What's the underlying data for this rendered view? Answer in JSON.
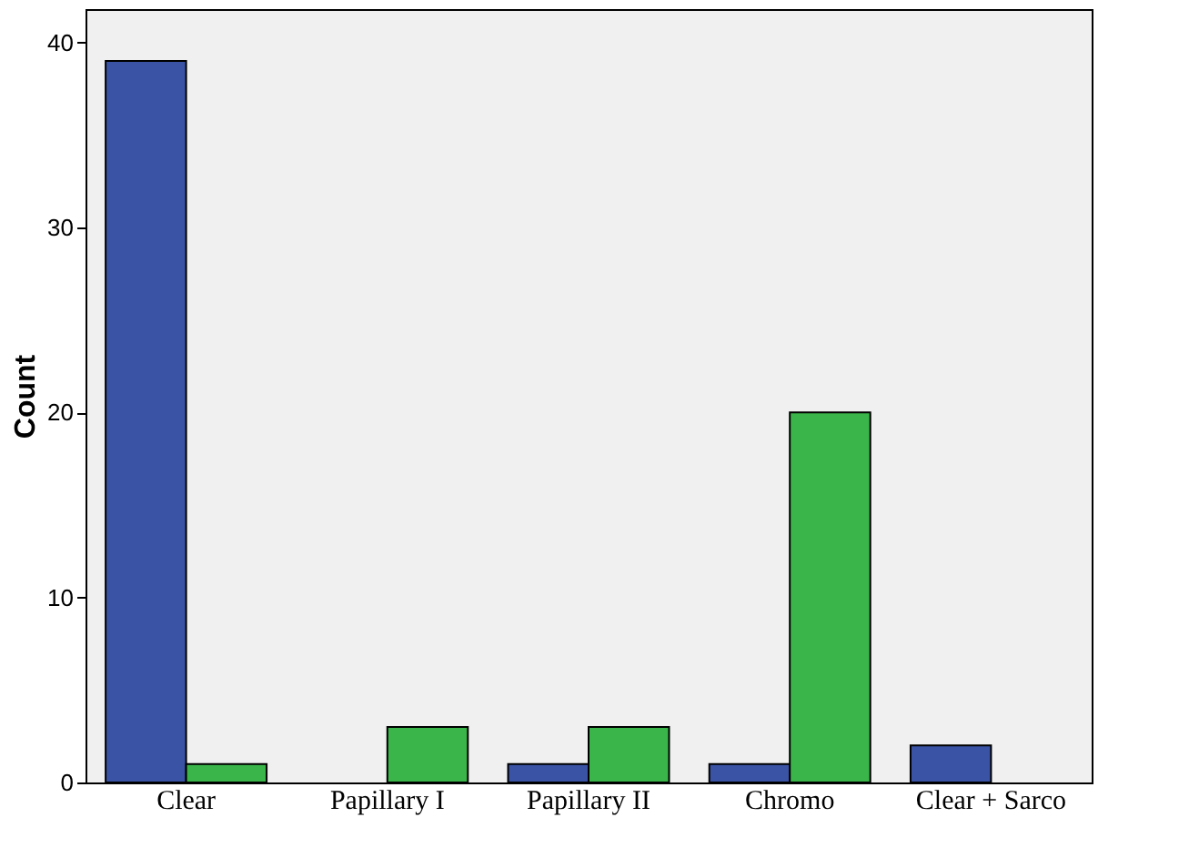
{
  "chart_data": {
    "type": "bar",
    "ylabel": "Count",
    "categories": [
      "Clear",
      "Papillary I",
      "Papillary II",
      "Chromo",
      "Clear + Sarco"
    ],
    "series": [
      {
        "color": "#3a53a4",
        "values": [
          39,
          0,
          1,
          1,
          2
        ]
      },
      {
        "color": "#3ab54a",
        "values": [
          1,
          3,
          3,
          20,
          0
        ]
      }
    ],
    "ylim": [
      0,
      41.8
    ],
    "yticks": [
      0,
      10,
      20,
      30,
      40
    ],
    "grid": false
  }
}
